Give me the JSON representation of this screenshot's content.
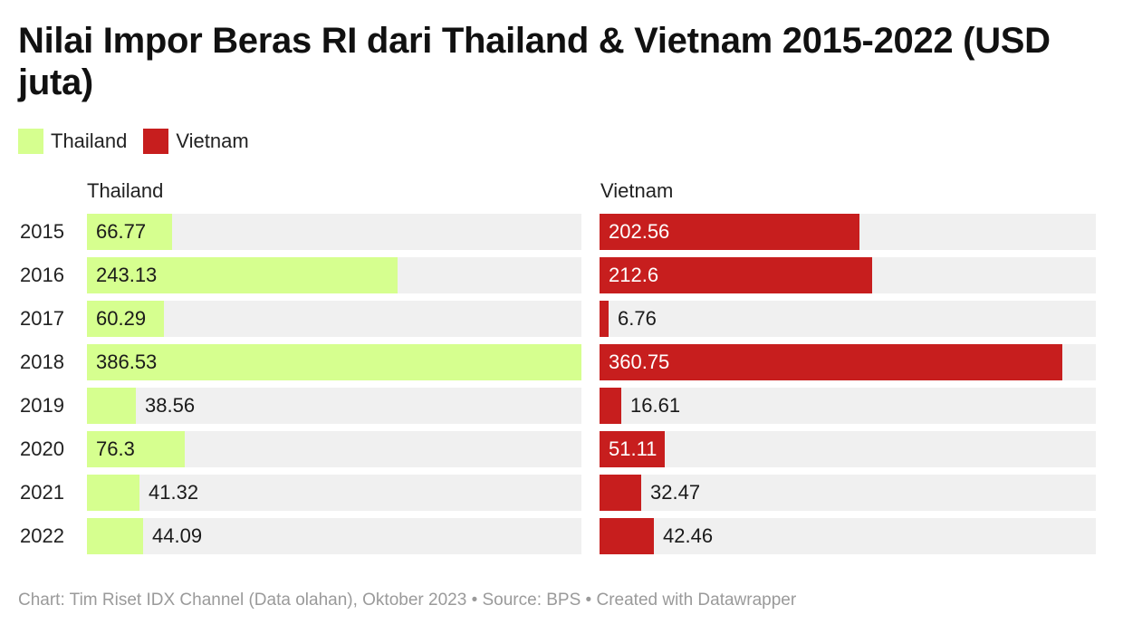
{
  "title": "Nilai Impor Beras RI dari Thailand & Vietnam 2015-2022 (USD juta)",
  "legend": [
    {
      "label": "Thailand",
      "color": "#d6ff8f"
    },
    {
      "label": "Vietnam",
      "color": "#c71e1e"
    }
  ],
  "footer": "Chart: Tim Riset IDX Channel (Data olahan), Oktober 2023 • Source: BPS • Created with Datawrapper",
  "chart_data": {
    "type": "bar",
    "orientation": "horizontal",
    "title": "Nilai Impor Beras RI dari Thailand & Vietnam 2015-2022 (USD juta)",
    "categories": [
      "2015",
      "2016",
      "2017",
      "2018",
      "2019",
      "2020",
      "2021",
      "2022"
    ],
    "series": [
      {
        "name": "Thailand",
        "color": "#d6ff8f",
        "values": [
          66.77,
          243.13,
          60.29,
          386.53,
          38.56,
          76.3,
          41.32,
          44.09
        ]
      },
      {
        "name": "Vietnam",
        "color": "#c71e1e",
        "values": [
          202.56,
          212.6,
          6.76,
          360.75,
          16.61,
          51.11,
          32.47,
          42.46
        ]
      }
    ],
    "xlim": [
      0,
      386.53
    ],
    "grid": false,
    "legend_position": "top-left"
  }
}
